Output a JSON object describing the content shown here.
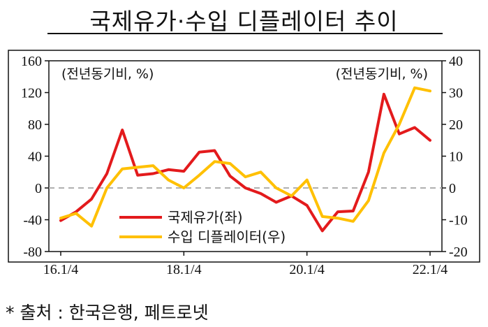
{
  "title": "국제유가·수입 디플레이터 추이",
  "source": "* 출처 : 한국은행, 페트로넷",
  "chart_data": {
    "type": "line",
    "left_axis": {
      "unit": "(전년동기비, %)",
      "ylim": [
        -80,
        160
      ],
      "ticks": [
        -80,
        -40,
        0,
        40,
        80,
        120,
        160
      ]
    },
    "right_axis": {
      "unit": "(전년동기비, %)",
      "ylim": [
        -20,
        40
      ],
      "ticks": [
        -20,
        -10,
        0,
        10,
        20,
        30,
        40
      ]
    },
    "x_ticks": [
      "16.1/4",
      "18.1/4",
      "20.1/4",
      "22.1/4"
    ],
    "x": [
      "16.1/4",
      "16.2/4",
      "16.3/4",
      "16.4/4",
      "17.1/4",
      "17.2/4",
      "17.3/4",
      "17.4/4",
      "18.1/4",
      "18.2/4",
      "18.3/4",
      "18.4/4",
      "19.1/4",
      "19.2/4",
      "19.3/4",
      "19.4/4",
      "20.1/4",
      "20.2/4",
      "20.3/4",
      "20.4/4",
      "21.1/4",
      "21.2/4",
      "21.3/4",
      "21.4/4",
      "22.1/4"
    ],
    "grid": false,
    "zero_line": "dashed",
    "legend_position": "center",
    "series": [
      {
        "name": "국제유가(좌)",
        "axis": "left",
        "color": "#e31a1c",
        "values": [
          -41,
          -30,
          -14,
          18,
          73,
          16,
          18,
          23,
          21,
          45,
          47,
          15,
          0,
          -7,
          -18,
          -10,
          -22,
          -54,
          -30,
          -29,
          20,
          118,
          68,
          76,
          60
        ]
      },
      {
        "name": "수입 디플레이터(우)",
        "axis": "right",
        "color": "#ffc000",
        "values": [
          -9.5,
          -8,
          -12,
          0,
          6,
          6.5,
          7,
          2.5,
          0,
          4,
          8.3,
          7.7,
          3.5,
          5,
          0,
          -2.5,
          2.5,
          -9,
          -9.5,
          -10.5,
          -4,
          11,
          20,
          31.5,
          30.5
        ]
      }
    ]
  }
}
